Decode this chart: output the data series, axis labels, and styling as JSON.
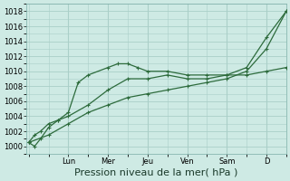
{
  "background_color": "#ceeae4",
  "grid_color": "#aacfc8",
  "line_color": "#2d6b3c",
  "ylim": [
    999.0,
    1019.0
  ],
  "yticks": [
    1000,
    1002,
    1004,
    1006,
    1008,
    1010,
    1012,
    1014,
    1016,
    1018
  ],
  "xlabel": "Pression niveau de la mer( hPa )",
  "xlabel_fontsize": 8,
  "day_labels": [
    "Lun",
    "Mer",
    "Jeu",
    "Ven",
    "Sam",
    "D"
  ],
  "day_positions": [
    1,
    2,
    3,
    4,
    5,
    6
  ],
  "xlim": [
    -0.05,
    6.5
  ],
  "line1_x": [
    0,
    0.15,
    0.3,
    0.5,
    0.75,
    1.0,
    1.25,
    1.5,
    2.0,
    2.25,
    2.5,
    2.75,
    3.0,
    3.5,
    4.0,
    4.5,
    5.0,
    5.5,
    6.0,
    6.5
  ],
  "line1_y": [
    1000.5,
    1000.0,
    1001.0,
    1002.5,
    1003.5,
    1004.5,
    1008.5,
    1009.5,
    1010.5,
    1011.0,
    1011.0,
    1010.5,
    1010.0,
    1010.0,
    1009.5,
    1009.5,
    1009.5,
    1009.5,
    1010.0,
    1010.5
  ],
  "line2_x": [
    0,
    0.15,
    0.3,
    0.5,
    0.75,
    1.0,
    1.5,
    2.0,
    2.5,
    3.0,
    3.5,
    4.0,
    4.5,
    5.0,
    5.5,
    6.0,
    6.5
  ],
  "line2_y": [
    1000.5,
    1001.5,
    1002.0,
    1003.0,
    1003.5,
    1004.0,
    1005.5,
    1007.5,
    1009.0,
    1009.0,
    1009.5,
    1009.0,
    1009.0,
    1009.5,
    1010.5,
    1014.5,
    1018.0
  ],
  "line3_x": [
    0,
    0.5,
    1.0,
    1.5,
    2.0,
    2.5,
    3.0,
    3.5,
    4.0,
    4.5,
    5.0,
    5.5,
    6.0,
    6.5
  ],
  "line3_y": [
    1000.5,
    1001.5,
    1003.0,
    1004.5,
    1005.5,
    1006.5,
    1007.0,
    1007.5,
    1008.0,
    1008.5,
    1009.0,
    1010.0,
    1013.0,
    1018.0
  ],
  "tick_fontsize": 6,
  "line_width": 0.9,
  "marker_size": 3.5
}
